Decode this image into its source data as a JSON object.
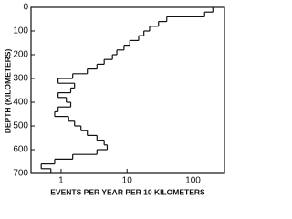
{
  "chart_data": {
    "type": "step-histogram",
    "xlabel": "EVENTS PER YEAR PER 10 KILOMETERS",
    "ylabel": "DEPTH (KILOMETERS)",
    "xscale": "log",
    "y_inverted": true,
    "xlim": [
      0.35,
      300
    ],
    "ylim": [
      0,
      700
    ],
    "xticks": [
      1,
      10,
      100
    ],
    "yticks": [
      0,
      100,
      200,
      300,
      400,
      500,
      600,
      700
    ],
    "color": "#111111",
    "bins": [
      0,
      20,
      40,
      60,
      80,
      100,
      120,
      140,
      160,
      180,
      200,
      220,
      240,
      260,
      280,
      300,
      320,
      340,
      360,
      380,
      400,
      420,
      440,
      460,
      480,
      500,
      520,
      540,
      560,
      580,
      600,
      620,
      640,
      660,
      680,
      700
    ],
    "values": [
      200,
      150,
      40,
      30,
      22,
      18,
      15,
      11,
      9,
      7,
      6,
      4.5,
      3.5,
      2.5,
      1.5,
      0.9,
      1.6,
      1.4,
      0.9,
      1.2,
      1.4,
      0.9,
      0.8,
      1.3,
      1.6,
      2,
      2.5,
      3.5,
      4.5,
      5,
      3.5,
      1.5,
      0.8,
      0.5,
      0.7
    ]
  }
}
